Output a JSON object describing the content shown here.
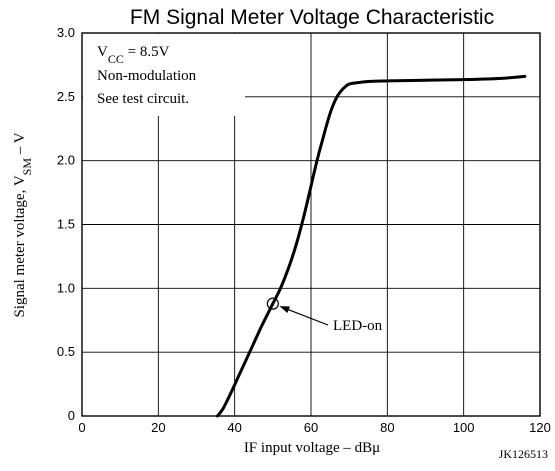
{
  "chart_data": {
    "type": "line",
    "title": "FM Signal Meter Voltage Characteristic",
    "xlabel": "IF input voltage – dBμ",
    "ylabel": {
      "prefix": "Signal meter voltage, V",
      "sub": "SM",
      "suffix": " – V"
    },
    "xlim": [
      0,
      120
    ],
    "ylim": [
      0,
      3.0
    ],
    "xticks": [
      "0",
      "20",
      "40",
      "60",
      "80",
      "100",
      "120"
    ],
    "yticks": [
      "0",
      "0.5",
      "1.0",
      "1.5",
      "2.0",
      "2.5",
      "3.0"
    ],
    "grid": true,
    "series": [
      {
        "x": [
          35.5,
          37,
          39,
          41,
          43,
          45,
          47,
          49,
          50,
          52,
          54,
          56,
          58,
          60,
          61,
          62,
          63,
          64,
          65,
          66,
          67,
          68,
          69,
          70,
          72,
          75,
          80,
          90,
          100,
          110,
          116
        ],
        "y": [
          0,
          0.06,
          0.18,
          0.31,
          0.44,
          0.57,
          0.7,
          0.82,
          0.88,
          1.0,
          1.15,
          1.33,
          1.55,
          1.8,
          1.93,
          2.05,
          2.16,
          2.27,
          2.37,
          2.45,
          2.51,
          2.55,
          2.58,
          2.6,
          2.61,
          2.62,
          2.625,
          2.63,
          2.635,
          2.645,
          2.66
        ]
      }
    ],
    "annotations": {
      "conditions": {
        "vcc_prefix": "V",
        "vcc_sub": "CC",
        "vcc_value": " = 8.5V",
        "line2": "Non-modulation",
        "line3": "See test circuit."
      },
      "marker": {
        "label": "LED-on",
        "x": 50,
        "y": 0.88
      },
      "figure_code": "JK126513"
    }
  }
}
